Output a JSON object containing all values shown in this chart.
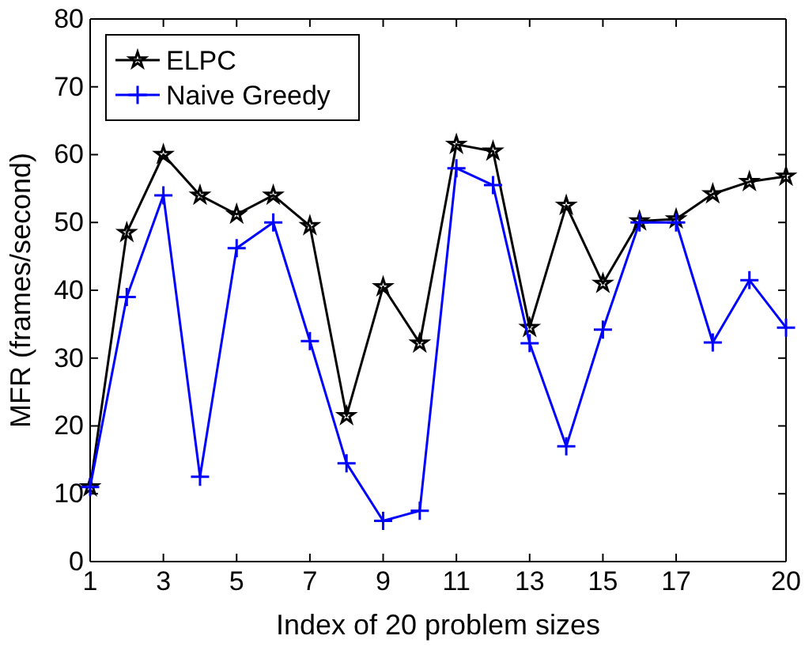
{
  "chart_data": {
    "type": "line",
    "xlabel": "Index of 20 problem sizes",
    "ylabel": "MFR (frames/second)",
    "x": [
      1,
      2,
      3,
      4,
      5,
      6,
      7,
      8,
      9,
      10,
      11,
      12,
      13,
      14,
      15,
      16,
      17,
      18,
      19,
      20
    ],
    "xlim": [
      1,
      20
    ],
    "xticks": [
      1,
      3,
      5,
      7,
      9,
      11,
      13,
      15,
      17,
      20
    ],
    "ylim": [
      0,
      80
    ],
    "yticks": [
      0,
      10,
      20,
      30,
      40,
      50,
      60,
      70,
      80
    ],
    "grid": false,
    "legend": "top left",
    "series": [
      {
        "name": "ELPC",
        "color": "#000000",
        "marker": "star",
        "values": [
          11,
          48.5,
          60,
          54,
          51.2,
          54,
          49.5,
          21.5,
          40.5,
          32.2,
          61.5,
          60.5,
          34.5,
          52.5,
          41,
          50.2,
          50.5,
          54.2,
          56,
          56.8
        ]
      },
      {
        "name": "Naive Greedy",
        "color": "#0000ff",
        "marker": "cross",
        "values": [
          11,
          39,
          54,
          12.5,
          46.2,
          50,
          32.5,
          14.5,
          6,
          7.5,
          58,
          55.5,
          32.2,
          17,
          34.2,
          50,
          50,
          32.3,
          41.5,
          34.5
        ]
      }
    ]
  }
}
